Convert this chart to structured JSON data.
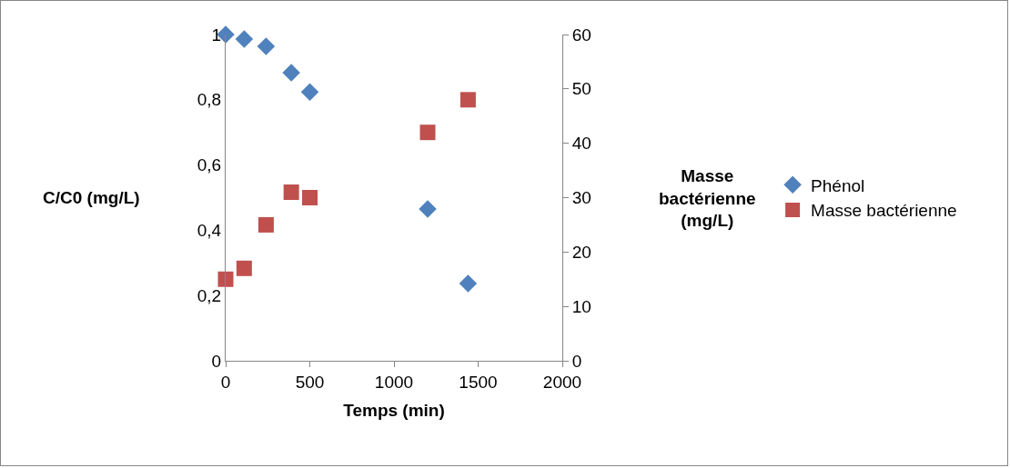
{
  "chart_data": {
    "type": "scatter",
    "xlabel": "Temps (min)",
    "ylabel": "C/C0 (mg/L)",
    "y2label": "Masse bactérienne (mg/L)",
    "x": [
      0,
      110,
      240,
      390,
      500,
      1200,
      1440
    ],
    "series": [
      {
        "name": "Phénol",
        "color": "#4f81bd",
        "marker": "diamond",
        "values": [
          1.0,
          0.986,
          0.964,
          0.883,
          0.824,
          0.465,
          0.237
        ]
      },
      {
        "name": "Masse bactérienne",
        "color": "#c0504d",
        "marker": "square",
        "axis": "y2",
        "values": [
          15,
          17,
          25,
          31,
          30,
          42,
          48
        ]
      }
    ],
    "xlim": [
      0,
      2000
    ],
    "xticks": [
      0,
      500,
      1000,
      1500,
      2000
    ],
    "ylim": [
      0,
      1
    ],
    "yticks": [
      0,
      {
        "value": 0.2,
        "label": "0,2"
      },
      {
        "value": 0.4,
        "label": "0,4"
      },
      {
        "value": 0.6,
        "label": "0,6"
      },
      {
        "value": 0.8,
        "label": "0,8"
      },
      1
    ],
    "y2lim": [
      0,
      60
    ],
    "y2ticks": [
      0,
      10,
      20,
      30,
      40,
      50,
      60
    ],
    "grid": false,
    "legend": "right"
  }
}
